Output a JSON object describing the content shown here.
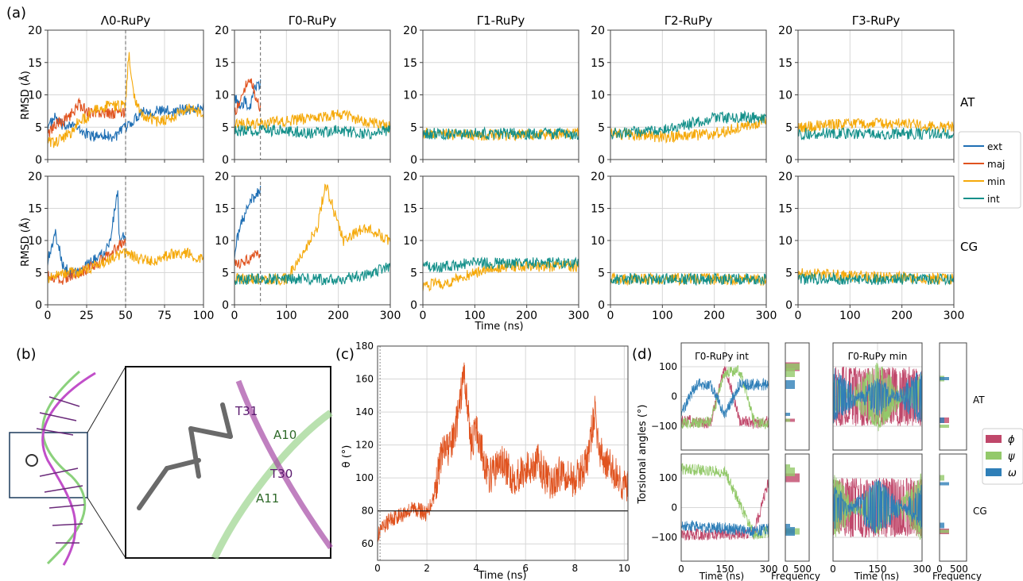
{
  "panel_labels": [
    "(a)",
    "(b)",
    "(c)",
    "(d)"
  ],
  "colors": {
    "ext": "#1f6fb4",
    "maj": "#e0531f",
    "min": "#f5a90a",
    "int": "#14908a",
    "phi": "#c0476a",
    "psi": "#93c96a",
    "omega": "#2f7fb8",
    "grid": "#d7d7d7"
  },
  "panel_a": {
    "row_labels": [
      "AT",
      "CG"
    ],
    "ylabel": "RMSD (Å)",
    "xlabel": "Time (ns)",
    "legend": [
      "ext",
      "maj",
      "min",
      "int"
    ],
    "columns": [
      {
        "title": "Λ0-RuPy",
        "xmax": 100,
        "xticks": [
          "0",
          "25",
          "50",
          "75",
          "100"
        ],
        "dashed_x": 50
      },
      {
        "title": "Γ0-RuPy",
        "xmax": 300,
        "xticks": [
          "0",
          "100",
          "200",
          "300"
        ],
        "dashed_x": 50
      },
      {
        "title": "Γ1-RuPy",
        "xmax": 300,
        "xticks": [
          "0",
          "100",
          "200",
          "300"
        ],
        "dashed_x": null
      },
      {
        "title": "Γ2-RuPy",
        "xmax": 300,
        "xticks": [
          "0",
          "100",
          "200",
          "300"
        ],
        "dashed_x": null
      },
      {
        "title": "Γ3-RuPy",
        "xmax": 300,
        "xticks": [
          "0",
          "100",
          "200",
          "300"
        ],
        "dashed_x": null
      }
    ],
    "yticks": [
      "0",
      "5",
      "10",
      "15",
      "20"
    ]
  },
  "panel_b": {
    "labels": [
      "T31",
      "A10",
      "T30",
      "A11"
    ]
  },
  "panel_c": {
    "ylabel": "θ (°)",
    "xlabel": "Time (ns)",
    "xticks": [
      "0",
      "2",
      "4",
      "6",
      "8",
      "10"
    ],
    "yticks": [
      "60",
      "80",
      "100",
      "120",
      "140",
      "160",
      "180"
    ],
    "hline": 80
  },
  "panel_d": {
    "titles": [
      "Γ0-RuPy int",
      "Γ0-RuPy min"
    ],
    "ylabel": "Torsional angles (°)",
    "xlabel_time": "Time (ns)",
    "xlabel_freq": "Frequency",
    "row_labels": [
      "AT",
      "CG"
    ],
    "yticks": [
      "100",
      "0",
      "−100"
    ],
    "xticks_time": [
      "0",
      "150",
      "300"
    ],
    "xticks_freq": [
      "0",
      "500"
    ],
    "legend": [
      "ϕ",
      "ψ",
      "ω"
    ]
  },
  "chart_data": [
    {
      "type": "line",
      "id": "a-AT-L0",
      "title": "Λ0-RuPy",
      "row": "AT",
      "ylabel": "RMSD (Å)",
      "xlim": [
        0,
        100
      ],
      "ylim": [
        0,
        20
      ],
      "grid": true,
      "series": [
        {
          "name": "ext",
          "x": [
            0,
            5,
            10,
            15,
            20,
            25,
            30,
            35,
            40,
            45,
            50,
            55,
            60,
            70,
            80,
            90,
            100
          ],
          "values": [
            5,
            6.5,
            5,
            5.8,
            4.5,
            4,
            3.5,
            4,
            3.5,
            3.8,
            5,
            6,
            7.5,
            7.5,
            7.5,
            7.8,
            8
          ]
        },
        {
          "name": "maj",
          "x": [
            0,
            5,
            10,
            15,
            20,
            25,
            30,
            35,
            40,
            45,
            50
          ],
          "values": [
            4,
            5.5,
            6,
            7,
            8.5,
            7.5,
            7,
            7.2,
            7,
            7.3,
            7.2
          ]
        },
        {
          "name": "min",
          "x": [
            0,
            5,
            10,
            15,
            20,
            25,
            30,
            35,
            40,
            45,
            50,
            52,
            55,
            60,
            70,
            80,
            90,
            100
          ],
          "values": [
            3,
            2.5,
            3.5,
            4,
            6,
            6.5,
            7.5,
            8,
            8.5,
            8.2,
            8.5,
            16.5,
            10,
            7,
            6,
            6.5,
            8,
            7
          ]
        }
      ]
    },
    {
      "type": "line",
      "id": "a-AT-G0",
      "title": "Γ0-RuPy",
      "row": "AT",
      "xlim": [
        0,
        300
      ],
      "ylim": [
        0,
        20
      ],
      "series": [
        {
          "name": "ext",
          "x": [
            0,
            10,
            20,
            30,
            40,
            50
          ],
          "values": [
            10,
            8,
            9,
            8,
            11,
            12
          ]
        },
        {
          "name": "maj",
          "x": [
            0,
            10,
            20,
            30,
            40,
            50
          ],
          "values": [
            7,
            9,
            11,
            13,
            10,
            8
          ]
        },
        {
          "name": "min",
          "x": [
            0,
            50,
            100,
            150,
            200,
            250,
            300
          ],
          "values": [
            5.5,
            5.5,
            6,
            6.5,
            7,
            6,
            5
          ]
        },
        {
          "name": "int",
          "x": [
            0,
            50,
            100,
            150,
            200,
            250,
            300
          ],
          "values": [
            4.5,
            4.5,
            4.5,
            4,
            4.5,
            4,
            4.5
          ]
        }
      ]
    },
    {
      "type": "line",
      "id": "a-AT-G1",
      "title": "Γ1-RuPy",
      "row": "AT",
      "xlim": [
        0,
        300
      ],
      "ylim": [
        0,
        20
      ],
      "series": [
        {
          "name": "min",
          "x": [
            0,
            100,
            200,
            300
          ],
          "values": [
            4,
            3.8,
            3.8,
            4
          ]
        },
        {
          "name": "int",
          "x": [
            0,
            100,
            200,
            300
          ],
          "values": [
            4,
            4,
            4,
            4
          ]
        }
      ]
    },
    {
      "type": "line",
      "id": "a-AT-G2",
      "title": "Γ2-RuPy",
      "row": "AT",
      "xlim": [
        0,
        300
      ],
      "ylim": [
        0,
        20
      ],
      "series": [
        {
          "name": "min",
          "x": [
            0,
            100,
            200,
            300
          ],
          "values": [
            4,
            3.5,
            4,
            6
          ]
        },
        {
          "name": "int",
          "x": [
            0,
            100,
            200,
            300
          ],
          "values": [
            4,
            4.5,
            6.5,
            6.5
          ]
        }
      ]
    },
    {
      "type": "line",
      "id": "a-AT-G3",
      "title": "Γ3-RuPy",
      "row": "AT",
      "xlim": [
        0,
        300
      ],
      "ylim": [
        0,
        20
      ],
      "series": [
        {
          "name": "min",
          "x": [
            0,
            100,
            200,
            300
          ],
          "values": [
            5,
            5.5,
            5.5,
            5
          ]
        },
        {
          "name": "int",
          "x": [
            0,
            100,
            200,
            300
          ],
          "values": [
            4,
            4,
            4,
            4
          ]
        }
      ]
    },
    {
      "type": "line",
      "id": "a-CG-L0",
      "title": "Λ0-RuPy",
      "row": "CG",
      "xlim": [
        0,
        100
      ],
      "ylim": [
        0,
        20
      ],
      "series": [
        {
          "name": "ext",
          "x": [
            0,
            5,
            10,
            15,
            20,
            25,
            30,
            35,
            40,
            45,
            46,
            50
          ],
          "values": [
            7,
            11,
            6,
            5,
            5,
            6,
            7,
            8,
            10,
            18,
            10,
            11
          ]
        },
        {
          "name": "maj",
          "x": [
            0,
            10,
            20,
            30,
            40,
            50
          ],
          "values": [
            4.5,
            4,
            5,
            6,
            8,
            10
          ]
        },
        {
          "name": "min",
          "x": [
            0,
            10,
            20,
            30,
            40,
            50,
            60,
            70,
            80,
            90,
            100
          ],
          "values": [
            4,
            5,
            5,
            6,
            7,
            8,
            7,
            7,
            8,
            8,
            7
          ]
        }
      ]
    },
    {
      "type": "line",
      "id": "a-CG-G0",
      "title": "Γ0-RuPy",
      "row": "CG",
      "xlim": [
        0,
        300
      ],
      "ylim": [
        0,
        20
      ],
      "series": [
        {
          "name": "ext",
          "x": [
            0,
            10,
            20,
            30,
            40,
            50
          ],
          "values": [
            8,
            12,
            14,
            16,
            17,
            18
          ]
        },
        {
          "name": "maj",
          "x": [
            0,
            25,
            50
          ],
          "values": [
            6,
            7,
            8
          ]
        },
        {
          "name": "min",
          "x": [
            0,
            50,
            100,
            130,
            160,
            175,
            190,
            210,
            250,
            300
          ],
          "values": [
            4,
            4,
            4,
            8,
            12,
            19,
            15,
            10,
            12,
            10
          ]
        },
        {
          "name": "int",
          "x": [
            0,
            100,
            200,
            250,
            300
          ],
          "values": [
            4,
            4,
            4,
            4.5,
            6
          ]
        }
      ]
    },
    {
      "type": "line",
      "id": "a-CG-G1",
      "title": "Γ1-RuPy",
      "row": "CG",
      "xlim": [
        0,
        300
      ],
      "ylim": [
        0,
        20
      ],
      "series": [
        {
          "name": "min",
          "x": [
            0,
            50,
            100,
            150,
            300
          ],
          "values": [
            3,
            3.5,
            5,
            6,
            6
          ]
        },
        {
          "name": "int",
          "x": [
            0,
            50,
            100,
            150,
            300
          ],
          "values": [
            6,
            6,
            6.5,
            6.5,
            6.5
          ]
        }
      ]
    },
    {
      "type": "line",
      "id": "a-CG-G2",
      "title": "Γ2-RuPy",
      "row": "CG",
      "xlim": [
        0,
        300
      ],
      "ylim": [
        0,
        20
      ],
      "series": [
        {
          "name": "min",
          "x": [
            0,
            100,
            200,
            300
          ],
          "values": [
            4,
            4,
            4,
            3.8
          ]
        },
        {
          "name": "int",
          "x": [
            0,
            100,
            200,
            300
          ],
          "values": [
            4,
            4,
            4,
            4
          ]
        }
      ]
    },
    {
      "type": "line",
      "id": "a-CG-G3",
      "title": "Γ3-RuPy",
      "row": "CG",
      "xlim": [
        0,
        300
      ],
      "ylim": [
        0,
        20
      ],
      "series": [
        {
          "name": "min",
          "x": [
            0,
            100,
            200,
            300
          ],
          "values": [
            5,
            4.5,
            4.2,
            4
          ]
        },
        {
          "name": "int",
          "x": [
            0,
            100,
            200,
            300
          ],
          "values": [
            4,
            4,
            4,
            4
          ]
        }
      ]
    },
    {
      "type": "line",
      "id": "c",
      "ylabel": "θ (°)",
      "xlabel": "Time (ns)",
      "xlim": [
        0,
        10
      ],
      "ylim": [
        50,
        180
      ],
      "grid": true,
      "series": [
        {
          "name": "θ",
          "x": [
            0,
            0.5,
            1,
            1.5,
            2,
            2.3,
            2.6,
            3,
            3.3,
            3.5,
            3.8,
            4,
            4.5,
            5,
            5.5,
            6,
            6.5,
            7,
            7.5,
            8,
            8.5,
            8.8,
            9,
            9.5,
            10
          ],
          "values": [
            65,
            75,
            78,
            82,
            78,
            90,
            115,
            120,
            140,
            165,
            120,
            130,
            100,
            110,
            100,
            105,
            110,
            95,
            105,
            98,
            110,
            140,
            115,
            105,
            95
          ]
        }
      ]
    },
    {
      "type": "line",
      "id": "d-AT-int",
      "title": "Γ0-RuPy int",
      "row": "AT",
      "xlim": [
        0,
        300
      ],
      "ylim": [
        -180,
        180
      ],
      "series": [
        {
          "name": "ϕ",
          "x": [
            0,
            100,
            150,
            200,
            250,
            300
          ],
          "values": [
            -80,
            -90,
            100,
            -80,
            -90,
            -85
          ]
        },
        {
          "name": "ψ",
          "x": [
            0,
            100,
            150,
            200,
            250,
            300
          ],
          "values": [
            -90,
            -85,
            80,
            90,
            -85,
            -90
          ]
        },
        {
          "name": "ω",
          "x": [
            0,
            50,
            100,
            150,
            200,
            250,
            300
          ],
          "values": [
            -60,
            40,
            40,
            -60,
            40,
            40,
            40
          ]
        }
      ]
    },
    {
      "type": "line",
      "id": "d-AT-min",
      "title": "Γ0-RuPy min",
      "row": "AT",
      "xlim": [
        0,
        300
      ],
      "ylim": [
        -180,
        180
      ],
      "series": [
        {
          "name": "ϕ",
          "x": [
            0,
            150,
            300
          ],
          "values": [
            -80,
            -80,
            -80
          ]
        },
        {
          "name": "ψ",
          "x": [
            0,
            150,
            300
          ],
          "values": [
            60,
            -100,
            60
          ]
        },
        {
          "name": "ω",
          "x": [
            0,
            150,
            300
          ],
          "values": [
            -80,
            50,
            -80
          ]
        }
      ]
    },
    {
      "type": "line",
      "id": "d-CG-int",
      "title": "Γ0-RuPy int",
      "row": "CG",
      "xlim": [
        0,
        300
      ],
      "ylim": [
        -180,
        180
      ],
      "series": [
        {
          "name": "ϕ",
          "x": [
            0,
            150,
            250,
            300
          ],
          "values": [
            -90,
            -90,
            -85,
            90
          ]
        },
        {
          "name": "ψ",
          "x": [
            0,
            150,
            250,
            300
          ],
          "values": [
            130,
            120,
            -90,
            -80
          ]
        },
        {
          "name": "ω",
          "x": [
            0,
            150,
            250,
            300
          ],
          "values": [
            -60,
            -70,
            -80,
            -70
          ]
        }
      ]
    },
    {
      "type": "line",
      "id": "d-CG-min",
      "title": "Γ0-RuPy min",
      "row": "CG",
      "xlim": [
        0,
        300
      ],
      "ylim": [
        -180,
        180
      ],
      "series": [
        {
          "name": "ϕ",
          "x": [
            0,
            150,
            300
          ],
          "values": [
            -80,
            -80,
            -80
          ]
        },
        {
          "name": "ψ",
          "x": [
            0,
            150,
            300
          ],
          "values": [
            100,
            -80,
            100
          ]
        },
        {
          "name": "ω",
          "x": [
            0,
            150,
            300
          ],
          "values": [
            -60,
            80,
            -60
          ]
        }
      ]
    }
  ]
}
